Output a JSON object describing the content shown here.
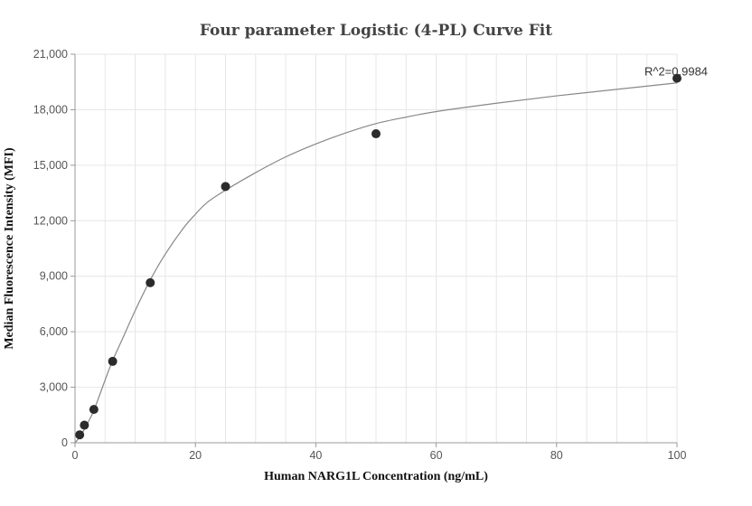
{
  "chart_data": {
    "type": "scatter",
    "title": "Four parameter Logistic (4-PL) Curve Fit",
    "xlabel": "Human NARG1L Concentration (ng/mL)",
    "ylabel": "Median Fluorescence Intensity (MFI)",
    "xlim": [
      0,
      100
    ],
    "ylim": [
      0,
      21000
    ],
    "x_ticks": [
      0,
      20,
      40,
      60,
      80,
      100
    ],
    "x_tick_labels": [
      "0",
      "20",
      "40",
      "60",
      "80",
      "100"
    ],
    "y_ticks": [
      0,
      3000,
      6000,
      9000,
      12000,
      15000,
      18000,
      21000
    ],
    "y_tick_labels": [
      "0",
      "3,000",
      "6,000",
      "9,000",
      "12,000",
      "15,000",
      "18,000",
      "21,000"
    ],
    "grid": true,
    "series": [
      {
        "values": [
          {
            "x": 0.78,
            "y": 430
          },
          {
            "x": 1.56,
            "y": 950
          },
          {
            "x": 3.13,
            "y": 1800
          },
          {
            "x": 6.25,
            "y": 4400
          },
          {
            "x": 12.5,
            "y": 8650
          },
          {
            "x": 25,
            "y": 13850
          },
          {
            "x": 50,
            "y": 16700
          },
          {
            "x": 100,
            "y": 19700
          }
        ]
      }
    ],
    "fit_curve": [
      {
        "x": 0,
        "y": 0
      },
      {
        "x": 1,
        "y": 420
      },
      {
        "x": 2,
        "y": 1000
      },
      {
        "x": 3,
        "y": 1650
      },
      {
        "x": 4,
        "y": 2500
      },
      {
        "x": 6,
        "y": 4250
      },
      {
        "x": 8,
        "y": 5700
      },
      {
        "x": 10,
        "y": 7150
      },
      {
        "x": 12.5,
        "y": 8800
      },
      {
        "x": 15,
        "y": 10200
      },
      {
        "x": 18,
        "y": 11600
      },
      {
        "x": 20,
        "y": 12350
      },
      {
        "x": 22,
        "y": 13000
      },
      {
        "x": 25,
        "y": 13650
      },
      {
        "x": 30,
        "y": 14600
      },
      {
        "x": 35,
        "y": 15450
      },
      {
        "x": 40,
        "y": 16150
      },
      {
        "x": 45,
        "y": 16750
      },
      {
        "x": 50,
        "y": 17250
      },
      {
        "x": 55,
        "y": 17600
      },
      {
        "x": 60,
        "y": 17900
      },
      {
        "x": 70,
        "y": 18350
      },
      {
        "x": 80,
        "y": 18750
      },
      {
        "x": 90,
        "y": 19100
      },
      {
        "x": 100,
        "y": 19450
      }
    ],
    "annotation": {
      "text": "R^2=0.9984",
      "x": 100,
      "y": 19700
    },
    "colors": {
      "points": "#2b2b2b",
      "curve": "#888888",
      "grid": "#e6e6e6",
      "axis": "#999999"
    }
  }
}
